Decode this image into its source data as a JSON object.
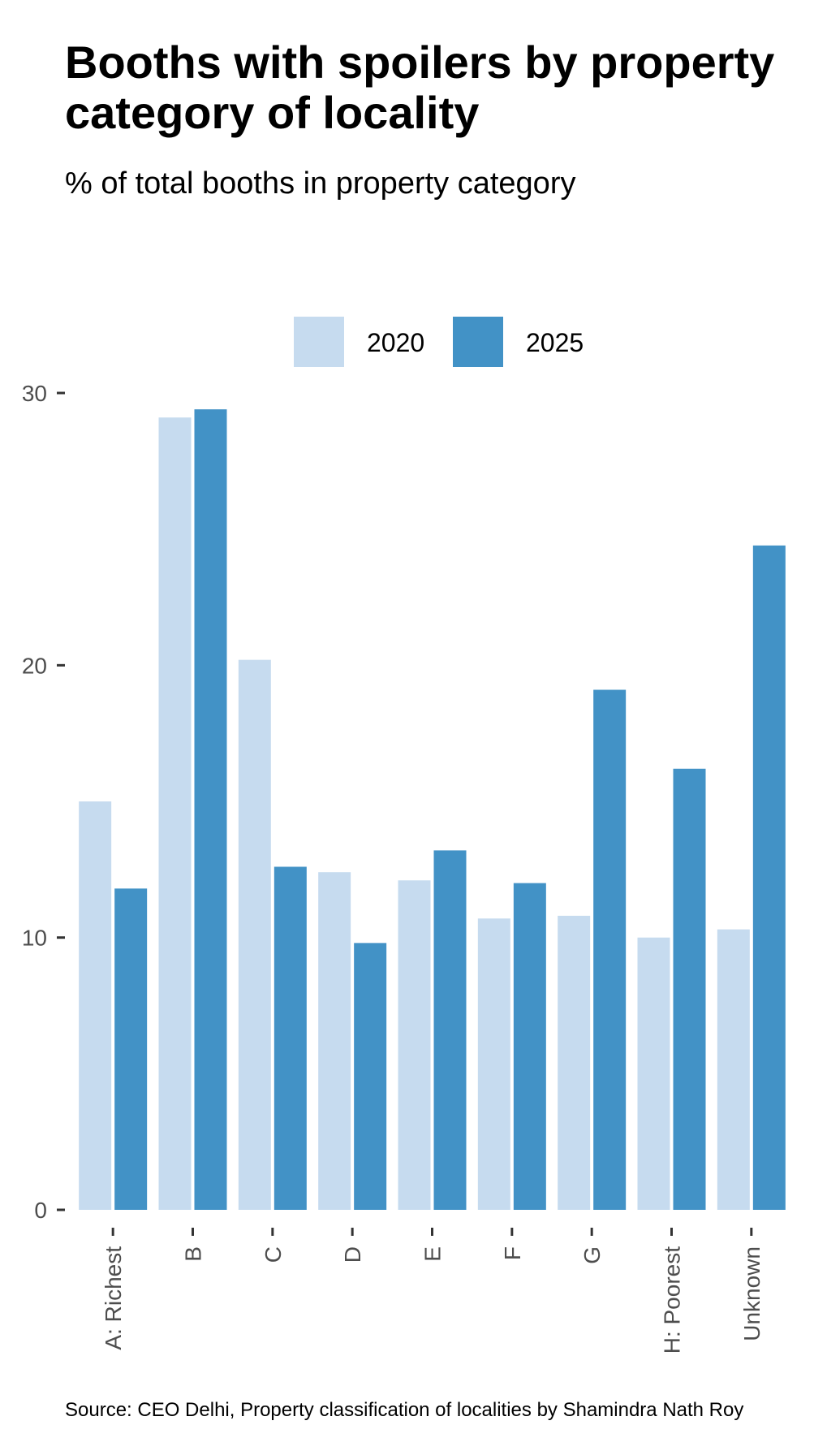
{
  "chart_data": {
    "type": "bar",
    "title": "Booths with spoilers by property category of locality",
    "subtitle": "% of total booths in property category",
    "caption": "Source: CEO Delhi, Property classification of localities by Shamindra Nath Roy",
    "xlabel": "",
    "ylabel": "",
    "categories": [
      "A: Richest",
      "B",
      "C",
      "D",
      "E",
      "F",
      "G",
      "H: Poorest",
      "Unknown"
    ],
    "series": [
      {
        "name": "2020",
        "color": "#c6dbef",
        "values": [
          15.0,
          29.1,
          20.2,
          12.4,
          12.1,
          10.7,
          10.8,
          10.0,
          10.3
        ]
      },
      {
        "name": "2025",
        "color": "#4292c6",
        "values": [
          11.8,
          29.4,
          12.6,
          9.8,
          13.2,
          12.0,
          19.1,
          16.2,
          24.4
        ]
      }
    ],
    "yticks": [
      0,
      10,
      20,
      30
    ],
    "ylim": [
      0,
      30
    ],
    "grid": false,
    "legend_position": "top"
  }
}
